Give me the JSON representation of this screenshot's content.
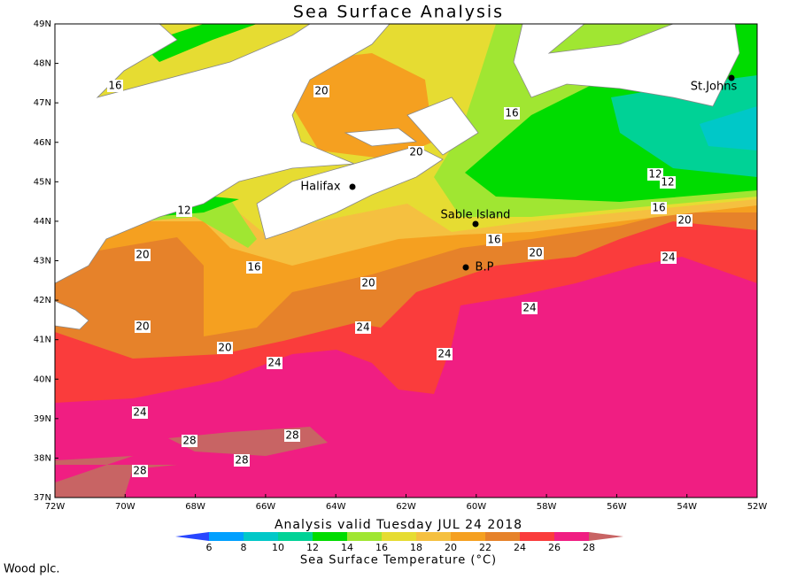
{
  "title": "Sea Surface Analysis",
  "subtitle": "Analysis valid Tuesday JUL 24 2018",
  "colorbar": {
    "title": "Sea Surface Temperature (°C)",
    "ticks": [
      "6",
      "8",
      "10",
      "12",
      "14",
      "16",
      "18",
      "20",
      "22",
      "24",
      "26",
      "28"
    ],
    "colors": [
      "#2846ff",
      "#00a0ff",
      "#00c8c8",
      "#00d296",
      "#00dc00",
      "#a0e632",
      "#e6dc32",
      "#f5c040",
      "#f5a020",
      "#e6822a",
      "#fa3c3c",
      "#f01e82",
      "#c86464"
    ]
  },
  "lat_ticks": [
    "49N",
    "48N",
    "47N",
    "46N",
    "45N",
    "44N",
    "43N",
    "42N",
    "41N",
    "40N",
    "39N",
    "38N",
    "37N"
  ],
  "lon_ticks": [
    "72W",
    "70W",
    "68W",
    "66W",
    "64W",
    "62W",
    "60W",
    "58W",
    "56W",
    "54W",
    "52W"
  ],
  "places": [
    "Halifax",
    "Sable Island",
    "St.Johns",
    "B.P"
  ],
  "contour_labels": [
    "16",
    "20",
    "16",
    "20",
    "12",
    "12",
    "16",
    "20",
    "12",
    "16",
    "20",
    "24",
    "20",
    "16",
    "20",
    "24",
    "20",
    "24",
    "20",
    "24",
    "24",
    "24",
    "28",
    "28",
    "28",
    "28"
  ],
  "footer": "Wood plc."
}
